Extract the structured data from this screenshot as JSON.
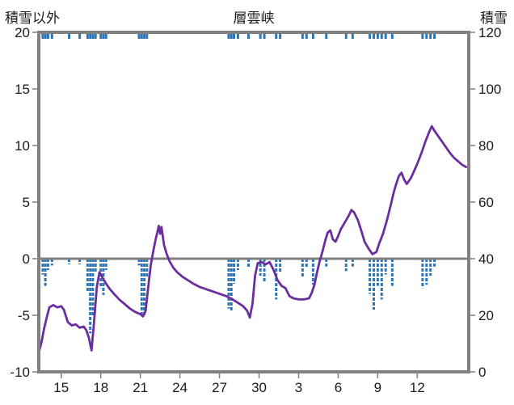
{
  "header": {
    "left_axis_title": "積雪以外",
    "title": "層雲峡",
    "right_axis_title": "積雪"
  },
  "colors": {
    "line": "#6B2E9E",
    "bar": "#2E75B6",
    "frame": "#808080",
    "text": "#1a1a1a"
  },
  "chart_data": {
    "type": "line",
    "title": "層雲峡",
    "left_axis": {
      "label": "積雪以外",
      "min": -10,
      "max": 20,
      "ticks": [
        20,
        15,
        10,
        5,
        0,
        -5,
        -10
      ]
    },
    "right_axis": {
      "label": "積雪",
      "min": 0,
      "max": 120,
      "ticks": [
        120,
        100,
        80,
        60,
        40,
        20,
        0
      ]
    },
    "axis_relation": "right_value = 4 * left_value + 40",
    "x_axis": {
      "tick_labels": [
        "15",
        "18",
        "21",
        "24",
        "27",
        "30",
        "3",
        "6",
        "9",
        "12"
      ],
      "tick_positions": [
        15,
        18,
        21,
        24,
        27,
        30,
        33,
        36,
        39,
        42
      ],
      "domain": [
        13.3,
        45.9
      ],
      "note": "day-of-month sequence continuing into the following month"
    },
    "line_series": {
      "name": "積雪",
      "color": "#6B2E9E",
      "points": [
        [
          13.3,
          -8.3
        ],
        [
          13.5,
          -7.4
        ],
        [
          13.7,
          -6.2
        ],
        [
          13.9,
          -5.2
        ],
        [
          14.1,
          -4.3
        ],
        [
          14.4,
          -4.1
        ],
        [
          14.7,
          -4.3
        ],
        [
          15.0,
          -4.2
        ],
        [
          15.2,
          -4.5
        ],
        [
          15.5,
          -5.6
        ],
        [
          15.8,
          -5.9
        ],
        [
          16.1,
          -5.8
        ],
        [
          16.4,
          -6.1
        ],
        [
          16.7,
          -6.0
        ],
        [
          16.9,
          -6.3
        ],
        [
          17.1,
          -7.0
        ],
        [
          17.3,
          -8.1
        ],
        [
          17.5,
          -5.5
        ],
        [
          17.7,
          -2.5
        ],
        [
          17.9,
          -1.2
        ],
        [
          18.1,
          -1.6
        ],
        [
          18.4,
          -2.2
        ],
        [
          18.7,
          -2.7
        ],
        [
          19.0,
          -3.1
        ],
        [
          19.4,
          -3.6
        ],
        [
          19.8,
          -4.0
        ],
        [
          20.2,
          -4.4
        ],
        [
          20.6,
          -4.7
        ],
        [
          21.0,
          -4.9
        ],
        [
          21.2,
          -5.1
        ],
        [
          21.4,
          -4.6
        ],
        [
          21.6,
          -2.5
        ],
        [
          21.8,
          -0.5
        ],
        [
          22.0,
          0.8
        ],
        [
          22.2,
          1.9
        ],
        [
          22.4,
          2.9
        ],
        [
          22.5,
          2.2
        ],
        [
          22.6,
          2.8
        ],
        [
          22.8,
          1.2
        ],
        [
          23.0,
          0.4
        ],
        [
          23.2,
          -0.2
        ],
        [
          23.5,
          -0.8
        ],
        [
          23.8,
          -1.2
        ],
        [
          24.2,
          -1.6
        ],
        [
          24.6,
          -1.9
        ],
        [
          25.0,
          -2.2
        ],
        [
          25.5,
          -2.5
        ],
        [
          26.0,
          -2.7
        ],
        [
          26.5,
          -2.9
        ],
        [
          27.0,
          -3.1
        ],
        [
          27.5,
          -3.3
        ],
        [
          28.0,
          -3.6
        ],
        [
          28.4,
          -3.9
        ],
        [
          28.8,
          -4.2
        ],
        [
          29.1,
          -4.6
        ],
        [
          29.3,
          -5.2
        ],
        [
          29.5,
          -4.0
        ],
        [
          29.7,
          -1.5
        ],
        [
          29.9,
          -0.4
        ],
        [
          30.2,
          -0.3
        ],
        [
          30.5,
          -0.5
        ],
        [
          30.8,
          -0.3
        ],
        [
          31.1,
          -1.0
        ],
        [
          31.4,
          -1.9
        ],
        [
          31.7,
          -2.4
        ],
        [
          32.0,
          -2.6
        ],
        [
          32.3,
          -3.3
        ],
        [
          32.6,
          -3.5
        ],
        [
          33.0,
          -3.6
        ],
        [
          33.4,
          -3.6
        ],
        [
          33.8,
          -3.5
        ],
        [
          34.0,
          -3.0
        ],
        [
          34.2,
          -2.3
        ],
        [
          34.4,
          -1.2
        ],
        [
          34.6,
          -0.2
        ],
        [
          34.8,
          0.6
        ],
        [
          35.0,
          1.5
        ],
        [
          35.2,
          2.3
        ],
        [
          35.4,
          2.5
        ],
        [
          35.6,
          1.7
        ],
        [
          35.8,
          1.5
        ],
        [
          36.0,
          2.0
        ],
        [
          36.2,
          2.6
        ],
        [
          36.5,
          3.2
        ],
        [
          36.8,
          3.8
        ],
        [
          37.0,
          4.3
        ],
        [
          37.2,
          4.1
        ],
        [
          37.5,
          3.4
        ],
        [
          37.8,
          2.3
        ],
        [
          38.0,
          1.5
        ],
        [
          38.3,
          0.9
        ],
        [
          38.6,
          0.4
        ],
        [
          38.9,
          0.6
        ],
        [
          39.1,
          1.3
        ],
        [
          39.4,
          2.2
        ],
        [
          39.7,
          3.4
        ],
        [
          40.0,
          4.8
        ],
        [
          40.2,
          5.8
        ],
        [
          40.4,
          6.6
        ],
        [
          40.6,
          7.3
        ],
        [
          40.8,
          7.6
        ],
        [
          41.0,
          7.0
        ],
        [
          41.2,
          6.6
        ],
        [
          41.5,
          7.1
        ],
        [
          41.7,
          7.6
        ],
        [
          42.0,
          8.4
        ],
        [
          42.3,
          9.3
        ],
        [
          42.6,
          10.3
        ],
        [
          42.9,
          11.2
        ],
        [
          43.1,
          11.7
        ],
        [
          43.3,
          11.3
        ],
        [
          43.6,
          10.8
        ],
        [
          43.9,
          10.3
        ],
        [
          44.2,
          9.8
        ],
        [
          44.5,
          9.3
        ],
        [
          44.8,
          8.9
        ],
        [
          45.1,
          8.6
        ],
        [
          45.4,
          8.3
        ],
        [
          45.7,
          8.1
        ]
      ]
    },
    "bar_series": {
      "name": "積雪以外",
      "color": "#2E75B6",
      "baseline": 0,
      "points": [
        [
          13.6,
          -1.4
        ],
        [
          13.8,
          -2.4
        ],
        [
          14.0,
          -1.0
        ],
        [
          14.3,
          -0.6
        ],
        [
          15.6,
          -0.5
        ],
        [
          16.4,
          -0.5
        ],
        [
          17.0,
          -3.0
        ],
        [
          17.2,
          -6.6
        ],
        [
          17.4,
          -5.0
        ],
        [
          17.6,
          -1.2
        ],
        [
          18.0,
          -2.6
        ],
        [
          18.2,
          -3.2
        ],
        [
          18.4,
          -1.0
        ],
        [
          20.9,
          -0.6
        ],
        [
          21.1,
          -4.9
        ],
        [
          21.3,
          -5.1
        ],
        [
          21.5,
          -1.6
        ],
        [
          27.7,
          -4.4
        ],
        [
          27.9,
          -4.7
        ],
        [
          28.1,
          -2.2
        ],
        [
          28.4,
          -1.0
        ],
        [
          29.2,
          -0.8
        ],
        [
          30.1,
          -1.5
        ],
        [
          30.4,
          -2.1
        ],
        [
          31.3,
          -3.6
        ],
        [
          31.6,
          -1.2
        ],
        [
          33.3,
          -1.7
        ],
        [
          33.6,
          -0.8
        ],
        [
          34.1,
          -2.3
        ],
        [
          35.1,
          -0.7
        ],
        [
          36.6,
          -1.1
        ],
        [
          37.1,
          -0.7
        ],
        [
          38.4,
          -3.1
        ],
        [
          38.7,
          -4.5
        ],
        [
          39.0,
          -2.4
        ],
        [
          39.3,
          -3.6
        ],
        [
          39.6,
          -1.4
        ],
        [
          40.1,
          -2.4
        ],
        [
          42.4,
          -2.6
        ],
        [
          42.7,
          -2.3
        ],
        [
          43.0,
          -1.5
        ],
        [
          43.3,
          -0.7
        ]
      ]
    }
  }
}
